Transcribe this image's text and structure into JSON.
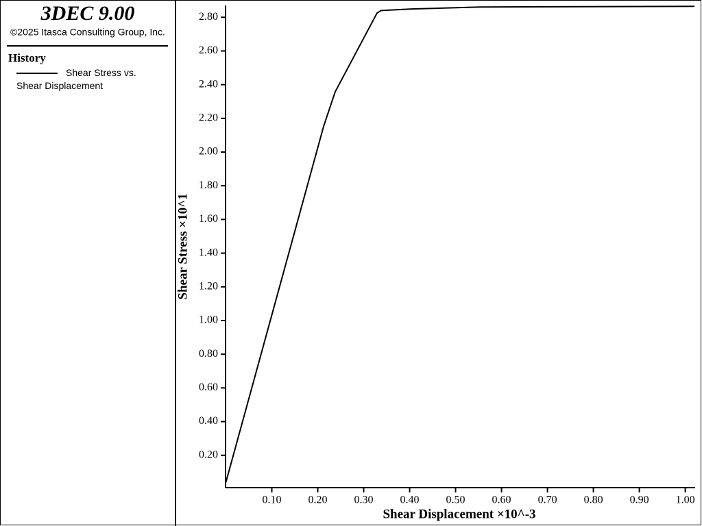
{
  "header": {
    "title": "3DEC 9.00",
    "copyright": "©2025 Itasca Consulting Group, Inc."
  },
  "legend_title": "History",
  "chart_data": {
    "type": "line",
    "x_label": "Shear Displacement ×10^-3",
    "y_label": "Shear Stress ×10^1",
    "xlim": [
      0,
      1.02
    ],
    "ylim": [
      0.01,
      2.87
    ],
    "xticks": [
      {
        "value": 0.1,
        "label": "0.10"
      },
      {
        "value": 0.2,
        "label": "0.20"
      },
      {
        "value": 0.3,
        "label": "0.30"
      },
      {
        "value": 0.4,
        "label": "0.40"
      },
      {
        "value": 0.5,
        "label": "0.50"
      },
      {
        "value": 0.6,
        "label": "0.60"
      },
      {
        "value": 0.7,
        "label": "0.70"
      },
      {
        "value": 0.8,
        "label": "0.80"
      },
      {
        "value": 0.9,
        "label": "0.90"
      },
      {
        "value": 1.0,
        "label": "1.00"
      }
    ],
    "yticks": [
      {
        "value": 0.2,
        "label": "0.20"
      },
      {
        "value": 0.4,
        "label": "0.40"
      },
      {
        "value": 0.6,
        "label": "0.60"
      },
      {
        "value": 0.8,
        "label": "0.80"
      },
      {
        "value": 1.0,
        "label": "1.00"
      },
      {
        "value": 1.2,
        "label": "1.20"
      },
      {
        "value": 1.4,
        "label": "1.40"
      },
      {
        "value": 1.6,
        "label": "1.60"
      },
      {
        "value": 1.8,
        "label": "1.80"
      },
      {
        "value": 2.0,
        "label": "2.00"
      },
      {
        "value": 2.2,
        "label": "2.20"
      },
      {
        "value": 2.4,
        "label": "2.40"
      },
      {
        "value": 2.6,
        "label": "2.60"
      },
      {
        "value": 2.8,
        "label": "2.80"
      }
    ],
    "x": [
      0,
      0.213,
      0.238,
      0.329,
      0.338,
      0.404,
      0.553,
      1.02
    ],
    "series": [
      {
        "name": "Shear Stress vs. Shear Displacement",
        "color": "#000000",
        "values": [
          0.04,
          2.155,
          2.358,
          2.825,
          2.84,
          2.849,
          2.861,
          2.865
        ]
      }
    ]
  }
}
